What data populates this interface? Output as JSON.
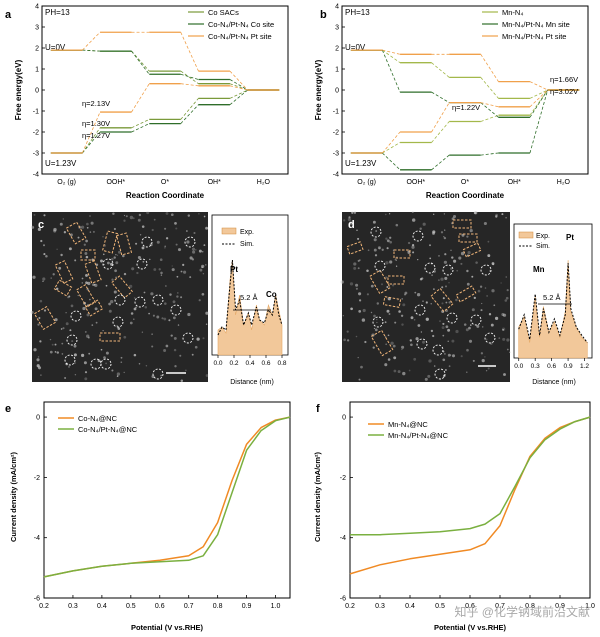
{
  "figure": {
    "panel_a": {
      "letter": "a",
      "ph": "PH=13",
      "u0": "U=0V",
      "u123": "U=1.23V",
      "ylabel": "Free energy(eV)",
      "xlabel": "Reaction Coordinate",
      "yticks": [
        "4",
        "3",
        "2",
        "1",
        "0",
        "-1",
        "-2",
        "-3",
        "-4"
      ],
      "xticks": [
        "O₂ (g)",
        "OOH*",
        "O*",
        "OH*",
        "H₂O"
      ],
      "legend": [
        "Co SACs",
        "Co-N₄/Pt-N₄ Co site",
        "Co-N₄/Pt-N₄ Pt site"
      ],
      "eta_labels": [
        "η=2.13V",
        "η=1.30V",
        "η=1.27V"
      ]
    },
    "panel_b": {
      "letter": "b",
      "ph": "PH=13",
      "u0": "U=0V",
      "u123": "U=1.23V",
      "ylabel": "Free energy(eV)",
      "xlabel": "Reaction Coordinate",
      "yticks": [
        "4",
        "3",
        "2",
        "1",
        "0",
        "-1",
        "-2",
        "-3",
        "-4"
      ],
      "xticks": [
        "O₂ (g)",
        "OOH*",
        "O*",
        "OH*",
        "H₂O"
      ],
      "legend": [
        "Mn-N₄",
        "Mn-N₄/Pt-N₄ Mn site",
        "Mn-N₄/Pt-N₄ Pt site"
      ],
      "eta_labels": [
        "η=1.66V",
        "η=3.02V",
        "η=1.22V"
      ]
    },
    "panel_c": {
      "letter": "c",
      "legend": [
        "Exp.",
        "Sim."
      ],
      "peak_labels": [
        "Pt",
        "Co"
      ],
      "distance": "5.2 Å",
      "xlabel": "Distance (nm)",
      "xticks": [
        "0.0",
        "0.2",
        "0.4",
        "0.6",
        "0.8"
      ]
    },
    "panel_d": {
      "letter": "d",
      "legend": [
        "Exp.",
        "Sim."
      ],
      "peak_labels": [
        "Mn",
        "Pt"
      ],
      "distance": "5.2 Å",
      "xlabel": "Distance (nm)",
      "xticks": [
        "0.0",
        "0.3",
        "0.6",
        "0.9",
        "1.2"
      ]
    },
    "panel_e": {
      "letter": "e",
      "ylabel": "Current density (mA/cm²)",
      "xlabel": "Potential (V vs.RHE)",
      "xticks": [
        "0.2",
        "0.3",
        "0.4",
        "0.5",
        "0.6",
        "0.7",
        "0.8",
        "0.9",
        "1.0"
      ],
      "yticks": [
        "0",
        "-2",
        "-4",
        "-6"
      ],
      "legend": [
        "Co-N₄@NC",
        "Co-N₄/Pt-N₄@NC"
      ]
    },
    "panel_f": {
      "letter": "f",
      "ylabel": "Current density (mA/cm²)",
      "xlabel": "Potential (V vs.RHE)",
      "xticks": [
        "0.2",
        "0.3",
        "0.4",
        "0.5",
        "0.6",
        "0.7",
        "0.8",
        "0.9",
        "1.0"
      ],
      "yticks": [
        "0",
        "-2",
        "-4",
        "-6"
      ],
      "legend": [
        "Mn-N₄@NC",
        "Mn-N₄/Pt-N₄@NC"
      ]
    },
    "watermark": "知乎 @化学钠域前沿文献"
  },
  "colors": {
    "co_sacs": "#7a9a3a",
    "co_site": "#2f6e2a",
    "pt_site": "#f0a04a",
    "mn_n4": "#a3b84a",
    "mn_site": "#2f6e2a",
    "mn_pt_site": "#f0a04a",
    "orange_curve": "#f08a24",
    "green_curve": "#7ab040"
  },
  "chart_data": [
    {
      "panel": "a",
      "type": "line",
      "title": "",
      "xlabel": "Reaction Coordinate",
      "ylabel": "Free energy(eV)",
      "categories": [
        "O2 (g)",
        "OOH*",
        "O*",
        "OH*",
        "H2O"
      ],
      "ylim": [
        -4,
        4
      ],
      "series": [
        {
          "name": "Co SACs U=0V",
          "values": [
            1.9,
            1.85,
            0.9,
            0.3,
            0
          ]
        },
        {
          "name": "Co SACs U=1.23V",
          "values": [
            -3.0,
            -1.8,
            -1.4,
            -0.4,
            0
          ]
        },
        {
          "name": "Co-N4/Pt-N4 Co site U=0V",
          "values": [
            1.9,
            1.85,
            0.75,
            0.5,
            0
          ]
        },
        {
          "name": "Co-N4/Pt-N4 Co site U=1.23V",
          "values": [
            -3.0,
            -2.0,
            -1.6,
            -0.7,
            0
          ]
        },
        {
          "name": "Co-N4/Pt-N4 Pt site U=0V",
          "values": [
            1.9,
            2.75,
            2.75,
            0.9,
            0
          ]
        },
        {
          "name": "Co-N4/Pt-N4 Pt site U=1.23V",
          "values": [
            -3.0,
            -1.05,
            0.3,
            0.2,
            0
          ]
        }
      ]
    },
    {
      "panel": "b",
      "type": "line",
      "title": "",
      "xlabel": "Reaction Coordinate",
      "ylabel": "Free energy(eV)",
      "categories": [
        "O2 (g)",
        "OOH*",
        "O*",
        "OH*",
        "H2O"
      ],
      "ylim": [
        -4,
        4
      ],
      "series": [
        {
          "name": "Mn-N4 U=0V",
          "values": [
            1.9,
            1.3,
            0.6,
            -0.4,
            0
          ]
        },
        {
          "name": "Mn-N4 U=1.23V",
          "values": [
            -3.0,
            -2.5,
            -1.5,
            -1.2,
            0
          ]
        },
        {
          "name": "Mn-N4/Pt-N4 Mn site U=0V",
          "values": [
            1.9,
            -0.1,
            -0.6,
            -1.3,
            0
          ]
        },
        {
          "name": "Mn-N4/Pt-N4 Mn site U=1.23V",
          "values": [
            -3.0,
            -3.8,
            -3.1,
            -3.0,
            0
          ]
        },
        {
          "name": "Mn-N4/Pt-N4 Pt site U=0V",
          "values": [
            1.9,
            1.7,
            1.7,
            0.4,
            0
          ]
        },
        {
          "name": "Mn-N4/Pt-N4 Pt site U=1.23V",
          "values": [
            -3.0,
            -2.0,
            -0.6,
            -0.8,
            0
          ]
        }
      ]
    },
    {
      "panel": "c",
      "type": "line",
      "title": "",
      "xlabel": "Distance (nm)",
      "ylabel": "",
      "x": [
        0.0,
        0.05,
        0.1,
        0.15,
        0.18,
        0.22,
        0.27,
        0.32,
        0.38,
        0.42,
        0.48,
        0.52,
        0.58,
        0.63,
        0.68,
        0.72,
        0.76,
        0.8
      ],
      "xlim": [
        -0.05,
        0.85
      ],
      "series": [
        {
          "name": "Exp.",
          "values": [
            0.25,
            0.28,
            0.22,
            0.75,
            0.95,
            0.4,
            0.6,
            0.3,
            0.42,
            0.25,
            0.5,
            0.35,
            0.3,
            0.5,
            0.4,
            0.6,
            0.45,
            0.3
          ]
        },
        {
          "name": "Sim.",
          "values": [
            0.2,
            0.28,
            0.25,
            0.7,
            0.95,
            0.45,
            0.55,
            0.3,
            0.42,
            0.3,
            0.48,
            0.35,
            0.32,
            0.45,
            0.4,
            0.6,
            0.4,
            0.3
          ]
        }
      ]
    },
    {
      "panel": "d",
      "type": "line",
      "title": "",
      "xlabel": "Distance (nm)",
      "ylabel": "",
      "x": [
        0.0,
        0.1,
        0.2,
        0.3,
        0.38,
        0.45,
        0.55,
        0.65,
        0.75,
        0.85,
        0.9,
        0.95,
        1.05,
        1.15,
        1.25
      ],
      "xlim": [
        -0.05,
        1.3
      ],
      "series": [
        {
          "name": "Exp.",
          "values": [
            0.3,
            0.4,
            0.15,
            0.6,
            0.2,
            0.5,
            0.25,
            0.35,
            0.2,
            0.45,
            0.95,
            0.45,
            0.3,
            0.2,
            0.15
          ]
        },
        {
          "name": "Sim.",
          "values": [
            0.28,
            0.42,
            0.18,
            0.62,
            0.22,
            0.48,
            0.25,
            0.38,
            0.22,
            0.42,
            0.92,
            0.48,
            0.3,
            0.22,
            0.15
          ]
        }
      ]
    },
    {
      "panel": "e",
      "type": "line",
      "title": "",
      "xlabel": "Potential (V vs.RHE)",
      "ylabel": "Current density (mA/cm²)",
      "x": [
        0.2,
        0.3,
        0.4,
        0.5,
        0.6,
        0.7,
        0.75,
        0.8,
        0.85,
        0.9,
        0.95,
        1.0,
        1.05
      ],
      "xlim": [
        0.2,
        1.05
      ],
      "ylim": [
        -6,
        0.5
      ],
      "series": [
        {
          "name": "Co-N4@NC",
          "values": [
            -5.3,
            -5.1,
            -4.95,
            -4.85,
            -4.75,
            -4.6,
            -4.3,
            -3.5,
            -2.1,
            -0.9,
            -0.35,
            -0.1,
            0
          ]
        },
        {
          "name": "Co-N4/Pt-N4@NC",
          "values": [
            -5.3,
            -5.1,
            -4.95,
            -4.85,
            -4.8,
            -4.75,
            -4.6,
            -3.9,
            -2.5,
            -1.1,
            -0.45,
            -0.12,
            0
          ]
        }
      ]
    },
    {
      "panel": "f",
      "type": "line",
      "title": "",
      "xlabel": "Potential (V vs.RHE)",
      "ylabel": "Current density (mA/cm²)",
      "x": [
        0.2,
        0.3,
        0.4,
        0.5,
        0.6,
        0.65,
        0.7,
        0.75,
        0.8,
        0.85,
        0.9,
        0.95,
        1.0
      ],
      "xlim": [
        0.2,
        1.0
      ],
      "ylim": [
        -6,
        0.5
      ],
      "series": [
        {
          "name": "Mn-N4@NC",
          "values": [
            -5.2,
            -4.9,
            -4.7,
            -4.55,
            -4.4,
            -4.2,
            -3.6,
            -2.4,
            -1.3,
            -0.7,
            -0.35,
            -0.15,
            0
          ]
        },
        {
          "name": "Mn-N4/Pt-N4@NC",
          "values": [
            -3.9,
            -3.9,
            -3.85,
            -3.8,
            -3.7,
            -3.55,
            -3.2,
            -2.3,
            -1.35,
            -0.75,
            -0.4,
            -0.15,
            0
          ]
        }
      ]
    }
  ]
}
